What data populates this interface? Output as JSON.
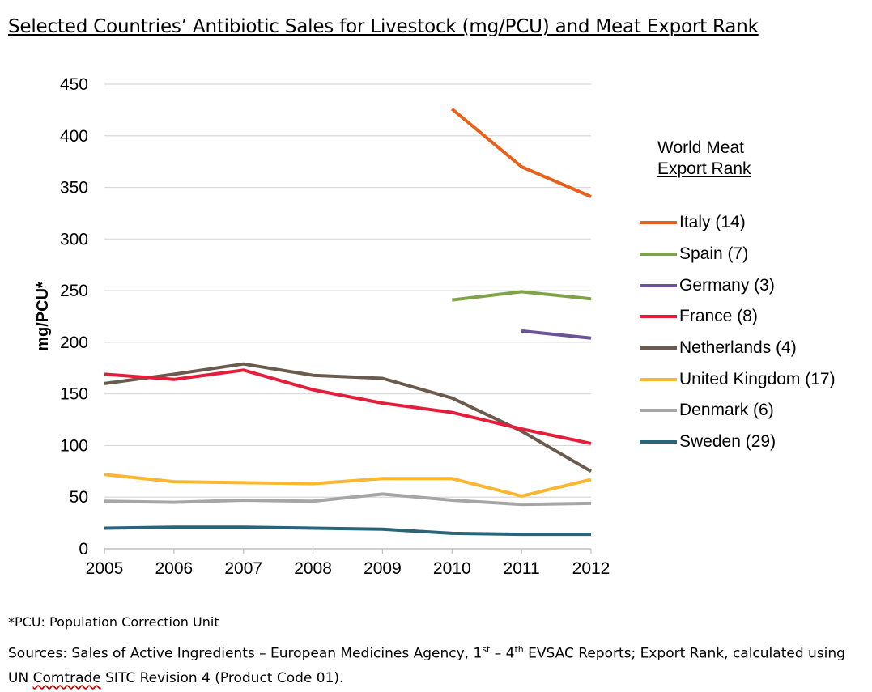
{
  "title": "Selected Countries’ Antibiotic Sales for Livestock (mg/PCU) and Meat Export Rank",
  "legend_title": {
    "line1": "World Meat",
    "line2": "Export Rank"
  },
  "footnote": "*PCU: Population Correction Unit",
  "source": {
    "part1": "Sources: Sales of Active Ingredients – European Medicines Agency, 1",
    "sup1": "st",
    "part2": " – 4",
    "sup2": "th",
    "part3": " EVSAC Reports; Export Rank, calculated using UN ",
    "comtrade": "Comtrade",
    "part4": " SITC Revision 4 (Product Code 01)."
  },
  "chart_data": {
    "type": "line",
    "title": "Selected Countries’ Antibiotic Sales for Livestock (mg/PCU) and Meat Export Rank",
    "xlabel": "",
    "ylabel": "mg/PCU*",
    "x": [
      "2005",
      "2006",
      "2007",
      "2008",
      "2009",
      "2010",
      "2011",
      "2012"
    ],
    "ylim": [
      0,
      450
    ],
    "yticks": [
      0,
      50,
      100,
      150,
      200,
      250,
      300,
      350,
      400,
      450
    ],
    "grid": true,
    "legend_placement": "right",
    "series": [
      {
        "name": "Italy (14)",
        "color": "#e8601c",
        "values": [
          null,
          null,
          null,
          null,
          null,
          426,
          370,
          341
        ]
      },
      {
        "name": "Spain (7)",
        "color": "#7fa346",
        "values": [
          null,
          null,
          null,
          null,
          null,
          241,
          249,
          242
        ]
      },
      {
        "name": "Germany (3)",
        "color": "#6b5399",
        "values": [
          null,
          null,
          null,
          null,
          null,
          null,
          211,
          204
        ]
      },
      {
        "name": "France (8)",
        "color": "#e41e3a",
        "values": [
          169,
          164,
          173,
          154,
          141,
          132,
          116,
          102
        ]
      },
      {
        "name": "Netherlands (4)",
        "color": "#6b5b4e",
        "values": [
          160,
          169,
          179,
          168,
          165,
          146,
          114,
          75
        ]
      },
      {
        "name": "United Kingdom (17)",
        "color": "#fbb731",
        "values": [
          72,
          65,
          64,
          63,
          68,
          68,
          51,
          67
        ]
      },
      {
        "name": "Denmark (6)",
        "color": "#a6a6a6",
        "values": [
          46,
          45,
          47,
          46,
          53,
          47,
          43,
          44
        ]
      },
      {
        "name": "Sweden (29)",
        "color": "#2a6479",
        "values": [
          20,
          21,
          21,
          20,
          19,
          15,
          14,
          14
        ]
      }
    ]
  }
}
